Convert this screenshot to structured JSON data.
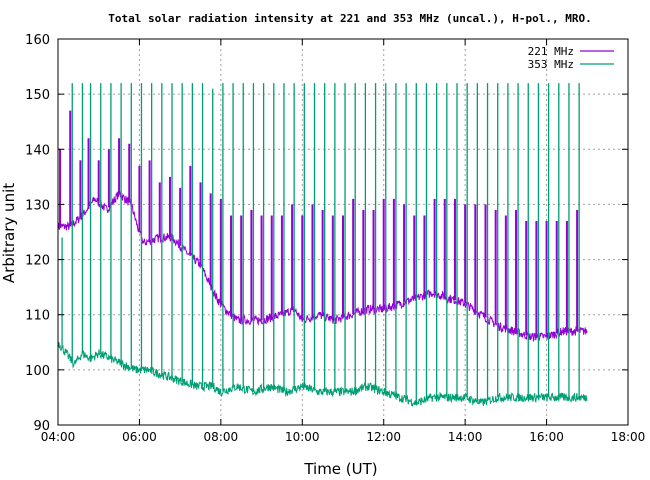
{
  "chart_data": {
    "type": "line",
    "title": "Total solar radiation intensity at 221 and 353 MHz (uncal.), H-pol., MRO.",
    "xlabel": "Time (UT)",
    "ylabel": "Arbitrary unit",
    "xlim_hours": [
      4,
      18
    ],
    "ylim": [
      90,
      160
    ],
    "x_ticks": [
      "04:00",
      "06:00",
      "08:00",
      "10:00",
      "12:00",
      "14:00",
      "16:00",
      "18:00"
    ],
    "y_ticks": [
      "90",
      "100",
      "110",
      "120",
      "130",
      "140",
      "150",
      "160"
    ],
    "grid": true,
    "legend_position": "top-right",
    "series": [
      {
        "name": "221 MHz",
        "color": "#9400d3",
        "baseline": [
          [
            4.0,
            126
          ],
          [
            4.3,
            126
          ],
          [
            4.6,
            128
          ],
          [
            4.9,
            131
          ],
          [
            5.2,
            129
          ],
          [
            5.5,
            132
          ],
          [
            5.8,
            130
          ],
          [
            5.95,
            126
          ],
          [
            6.1,
            123
          ],
          [
            6.5,
            124
          ],
          [
            6.8,
            124
          ],
          [
            7.2,
            121
          ],
          [
            7.5,
            119
          ],
          [
            7.7,
            116
          ],
          [
            7.9,
            113
          ],
          [
            8.1,
            111
          ],
          [
            8.4,
            109
          ],
          [
            8.7,
            109
          ],
          [
            9.0,
            109
          ],
          [
            9.5,
            110
          ],
          [
            9.8,
            111
          ],
          [
            10.0,
            109
          ],
          [
            10.4,
            110
          ],
          [
            10.8,
            109
          ],
          [
            11.2,
            110
          ],
          [
            11.6,
            111
          ],
          [
            12.0,
            111
          ],
          [
            12.4,
            112
          ],
          [
            12.8,
            113
          ],
          [
            13.2,
            114
          ],
          [
            13.6,
            113
          ],
          [
            14.0,
            112
          ],
          [
            14.4,
            110
          ],
          [
            14.8,
            108
          ],
          [
            15.2,
            107
          ],
          [
            15.6,
            106
          ],
          [
            16.0,
            106
          ],
          [
            16.4,
            107
          ],
          [
            16.8,
            107
          ],
          [
            17.0,
            107
          ]
        ],
        "spikes": [
          [
            4.05,
            140
          ],
          [
            4.3,
            147
          ],
          [
            4.55,
            138
          ],
          [
            4.75,
            142
          ],
          [
            5.0,
            138
          ],
          [
            5.25,
            140
          ],
          [
            5.5,
            142
          ],
          [
            5.75,
            141
          ],
          [
            6.0,
            137
          ],
          [
            6.25,
            138
          ],
          [
            6.5,
            134
          ],
          [
            6.75,
            135
          ],
          [
            7.0,
            133
          ],
          [
            7.25,
            137
          ],
          [
            7.5,
            134
          ],
          [
            7.75,
            132
          ],
          [
            8.0,
            131
          ],
          [
            8.25,
            128
          ],
          [
            8.5,
            128
          ],
          [
            8.75,
            129
          ],
          [
            9.0,
            128
          ],
          [
            9.25,
            128
          ],
          [
            9.5,
            128
          ],
          [
            9.75,
            130
          ],
          [
            10.0,
            128
          ],
          [
            10.25,
            130
          ],
          [
            10.5,
            129
          ],
          [
            10.75,
            128
          ],
          [
            11.0,
            128
          ],
          [
            11.25,
            131
          ],
          [
            11.5,
            129
          ],
          [
            11.75,
            129
          ],
          [
            12.0,
            131
          ],
          [
            12.25,
            131
          ],
          [
            12.5,
            130
          ],
          [
            12.75,
            128
          ],
          [
            13.0,
            128
          ],
          [
            13.25,
            131
          ],
          [
            13.5,
            131
          ],
          [
            13.75,
            131
          ],
          [
            14.0,
            130
          ],
          [
            14.25,
            130
          ],
          [
            14.5,
            130
          ],
          [
            14.75,
            129
          ],
          [
            15.0,
            128
          ],
          [
            15.25,
            129
          ],
          [
            15.5,
            127
          ],
          [
            15.75,
            127
          ],
          [
            16.0,
            127
          ],
          [
            16.25,
            127
          ],
          [
            16.5,
            127
          ],
          [
            16.75,
            129
          ]
        ]
      },
      {
        "name": "353 MHz",
        "color": "#009e73",
        "baseline": [
          [
            4.0,
            105
          ],
          [
            4.2,
            103
          ],
          [
            4.4,
            101
          ],
          [
            4.6,
            103
          ],
          [
            4.8,
            102
          ],
          [
            5.0,
            103
          ],
          [
            5.3,
            102
          ],
          [
            5.6,
            101
          ],
          [
            5.9,
            100
          ],
          [
            6.2,
            100
          ],
          [
            6.6,
            99
          ],
          [
            7.0,
            98
          ],
          [
            7.4,
            97
          ],
          [
            7.8,
            97
          ],
          [
            8.0,
            96
          ],
          [
            8.4,
            97
          ],
          [
            8.8,
            96
          ],
          [
            9.2,
            97
          ],
          [
            9.6,
            96
          ],
          [
            10.0,
            97
          ],
          [
            10.4,
            96
          ],
          [
            10.8,
            96
          ],
          [
            11.2,
            96
          ],
          [
            11.6,
            97
          ],
          [
            12.0,
            96
          ],
          [
            12.4,
            95
          ],
          [
            12.8,
            94
          ],
          [
            13.2,
            95
          ],
          [
            13.6,
            95
          ],
          [
            14.0,
            95
          ],
          [
            14.4,
            94
          ],
          [
            14.8,
            95
          ],
          [
            15.2,
            95
          ],
          [
            15.6,
            95
          ],
          [
            16.0,
            95
          ],
          [
            16.4,
            95
          ],
          [
            16.8,
            95
          ],
          [
            17.0,
            95
          ]
        ],
        "spikes": [
          [
            4.1,
            124
          ],
          [
            4.35,
            152
          ],
          [
            4.6,
            152
          ],
          [
            4.8,
            152
          ],
          [
            5.05,
            152
          ],
          [
            5.3,
            152
          ],
          [
            5.55,
            152
          ],
          [
            5.8,
            152
          ],
          [
            6.05,
            152
          ],
          [
            6.3,
            152
          ],
          [
            6.55,
            152
          ],
          [
            6.8,
            152
          ],
          [
            7.05,
            152
          ],
          [
            7.3,
            152
          ],
          [
            7.55,
            152
          ],
          [
            7.8,
            151
          ],
          [
            8.05,
            152
          ],
          [
            8.3,
            152
          ],
          [
            8.55,
            152
          ],
          [
            8.8,
            152
          ],
          [
            9.05,
            152
          ],
          [
            9.3,
            152
          ],
          [
            9.55,
            152
          ],
          [
            9.8,
            152
          ],
          [
            10.05,
            152
          ],
          [
            10.3,
            152
          ],
          [
            10.55,
            152
          ],
          [
            10.8,
            152
          ],
          [
            11.05,
            152
          ],
          [
            11.3,
            152
          ],
          [
            11.55,
            152
          ],
          [
            11.8,
            152
          ],
          [
            12.05,
            152
          ],
          [
            12.3,
            152
          ],
          [
            12.55,
            152
          ],
          [
            12.8,
            152
          ],
          [
            13.05,
            152
          ],
          [
            13.3,
            152
          ],
          [
            13.55,
            152
          ],
          [
            13.8,
            152
          ],
          [
            14.05,
            152
          ],
          [
            14.3,
            152
          ],
          [
            14.55,
            152
          ],
          [
            14.8,
            152
          ],
          [
            15.05,
            152
          ],
          [
            15.3,
            152
          ],
          [
            15.55,
            152
          ],
          [
            15.8,
            152
          ],
          [
            16.05,
            152
          ],
          [
            16.3,
            152
          ],
          [
            16.55,
            152
          ],
          [
            16.8,
            152
          ]
        ]
      }
    ]
  }
}
